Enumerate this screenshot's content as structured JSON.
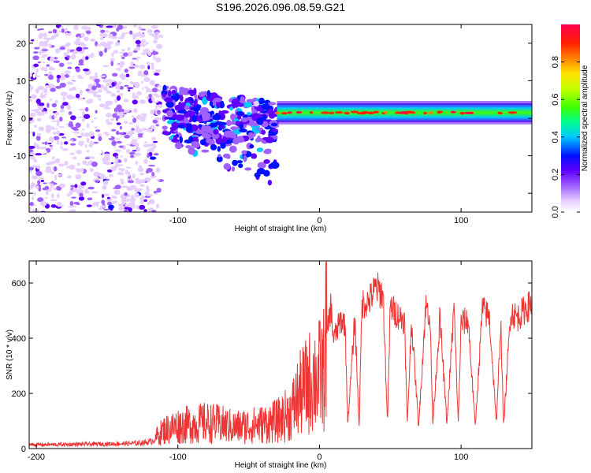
{
  "figure_title": "S196.2026.096.08.59.G21",
  "chart_data": [
    {
      "type": "heatmap",
      "title": "S196.2026.096.08.59.G21",
      "xlabel": "Height of straight line (km)",
      "ylabel": "Frequency (Hz)",
      "xlim": [
        -205,
        150
      ],
      "ylim": [
        -25,
        25
      ],
      "xticks": [
        -200,
        -100,
        0,
        100
      ],
      "yticks": [
        -20,
        -10,
        0,
        10,
        20
      ],
      "colorbar": {
        "label": "Normalized spectral amplitude",
        "range": [
          0,
          1
        ],
        "ticks": [
          0.0,
          0.2,
          0.4,
          0.6,
          0.8
        ],
        "tick_labels": [
          "0.0",
          "0.2",
          "0.4",
          "0.6",
          "0.8"
        ],
        "colormap": [
          "#ffffff",
          "#e6cfff",
          "#a060ff",
          "#6000ff",
          "#0010ff",
          "#00c8ff",
          "#00ff90",
          "#40ff00",
          "#c8ff00",
          "#ffe000",
          "#ff8000",
          "#ff2000",
          "#ff0050"
        ]
      },
      "regions": [
        {
          "name": "noise",
          "x_range": [
            -205,
            -112
          ],
          "freq_range": [
            -25,
            25
          ],
          "amplitude": 0.1
        },
        {
          "name": "transition",
          "x_range": [
            -110,
            -30
          ],
          "freq_range": [
            -18,
            8
          ],
          "amplitude": 0.2
        },
        {
          "name": "signal",
          "x_range": [
            -30,
            150
          ],
          "freq_center": 1.5,
          "freq_width": 2.5,
          "amplitude": 0.85
        }
      ]
    },
    {
      "type": "line",
      "xlabel": "Height of straight line (km)",
      "ylabel": "SNR (10 * v/v)",
      "xlim": [
        -205,
        150
      ],
      "ylim": [
        0,
        680
      ],
      "xticks": [
        -200,
        -100,
        0,
        100
      ],
      "yticks": [
        0,
        200,
        400,
        600
      ],
      "series": [
        {
          "name": "SNR",
          "color": "#ee3333",
          "x": [
            -205,
            -190,
            -175,
            -160,
            -145,
            -130,
            -120,
            -115,
            -110,
            -100,
            -90,
            -80,
            -70,
            -60,
            -50,
            -40,
            -30,
            -20,
            -15,
            -10,
            -5,
            0,
            3,
            5,
            8,
            10,
            15,
            18,
            20,
            25,
            28,
            30,
            35,
            40,
            45,
            48,
            50,
            55,
            60,
            62,
            65,
            70,
            75,
            78,
            80,
            85,
            90,
            95,
            98,
            100,
            105,
            110,
            115,
            120,
            125,
            128,
            130,
            135,
            140,
            145,
            150
          ],
          "y": [
            15,
            15,
            16,
            17,
            18,
            20,
            25,
            40,
            60,
            75,
            80,
            85,
            80,
            70,
            75,
            80,
            90,
            120,
            170,
            200,
            230,
            240,
            260,
            400,
            520,
            400,
            470,
            460,
            90,
            480,
            80,
            530,
            540,
            590,
            560,
            90,
            520,
            490,
            470,
            90,
            470,
            80,
            520,
            490,
            90,
            480,
            90,
            520,
            90,
            460,
            470,
            80,
            510,
            480,
            90,
            470,
            80,
            500,
            480,
            510,
            530
          ]
        }
      ]
    }
  ]
}
